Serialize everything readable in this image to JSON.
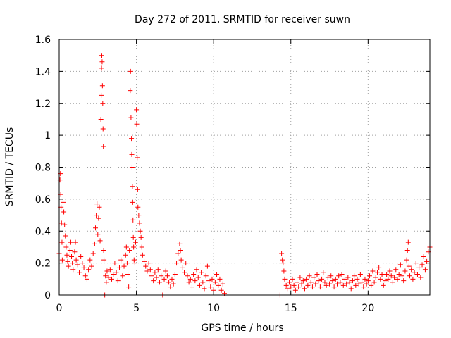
{
  "chart_data": {
    "type": "scatter",
    "title": "Day 272 of 2011, SRMTID for receiver suwn",
    "xlabel": "GPS time / hours",
    "ylabel": "SRMTID / TECUs",
    "xlim": [
      0,
      24
    ],
    "ylim": [
      0,
      1.6
    ],
    "xticks": [
      0,
      5,
      10,
      15,
      20
    ],
    "xtick_labels": [
      "0",
      "5",
      "10",
      "15",
      "20"
    ],
    "yticks": [
      0,
      0.2,
      0.4,
      0.6,
      0.8,
      1,
      1.2,
      1.4,
      1.6
    ],
    "ytick_labels": [
      "0",
      "0.2",
      "0.4",
      "0.6",
      "0.8",
      "1",
      "1.2",
      "1.4",
      "1.6"
    ],
    "grid": true,
    "marker": "+",
    "color": "#ff0000",
    "series": [
      {
        "points": [
          [
            0.0,
            0.26
          ],
          [
            0.05,
            0.72
          ],
          [
            0.08,
            0.76
          ],
          [
            0.1,
            0.63
          ],
          [
            0.12,
            0.55
          ],
          [
            0.15,
            0.45
          ],
          [
            0.18,
            0.33
          ],
          [
            0.2,
            0.22
          ],
          [
            0.25,
            0.58
          ],
          [
            0.3,
            0.52
          ],
          [
            0.35,
            0.44
          ],
          [
            0.4,
            0.37
          ],
          [
            0.45,
            0.3
          ],
          [
            0.5,
            0.25
          ],
          [
            0.55,
            0.21
          ],
          [
            0.6,
            0.18
          ],
          [
            0.7,
            0.28
          ],
          [
            0.75,
            0.33
          ],
          [
            0.8,
            0.24
          ],
          [
            0.85,
            0.2
          ],
          [
            0.9,
            0.16
          ],
          [
            1.0,
            0.27
          ],
          [
            1.05,
            0.33
          ],
          [
            1.1,
            0.22
          ],
          [
            1.2,
            0.19
          ],
          [
            1.3,
            0.14
          ],
          [
            1.4,
            0.24
          ],
          [
            1.5,
            0.2
          ],
          [
            1.6,
            0.17
          ],
          [
            1.7,
            0.12
          ],
          [
            1.8,
            0.1
          ],
          [
            1.9,
            0.16
          ],
          [
            2.0,
            0.22
          ],
          [
            2.1,
            0.18
          ],
          [
            2.2,
            0.26
          ],
          [
            2.3,
            0.32
          ],
          [
            2.35,
            0.42
          ],
          [
            2.4,
            0.5
          ],
          [
            2.45,
            0.57
          ],
          [
            2.5,
            0.38
          ],
          [
            2.55,
            0.48
          ],
          [
            2.6,
            0.55
          ],
          [
            2.65,
            0.34
          ],
          [
            2.7,
            1.1
          ],
          [
            2.72,
            1.25
          ],
          [
            2.74,
            1.42
          ],
          [
            2.76,
            1.5
          ],
          [
            2.78,
            1.46
          ],
          [
            2.8,
            1.31
          ],
          [
            2.82,
            1.2
          ],
          [
            2.84,
            1.04
          ],
          [
            2.86,
            0.93
          ],
          [
            2.88,
            0.28
          ],
          [
            2.9,
            0.22
          ],
          [
            2.95,
            0.0
          ],
          [
            3.0,
            0.12
          ],
          [
            3.05,
            0.08
          ],
          [
            3.1,
            0.15
          ],
          [
            3.2,
            0.11
          ],
          [
            3.3,
            0.16
          ],
          [
            3.4,
            0.1
          ],
          [
            3.5,
            0.13
          ],
          [
            3.6,
            0.2
          ],
          [
            3.7,
            0.14
          ],
          [
            3.8,
            0.09
          ],
          [
            3.9,
            0.17
          ],
          [
            4.0,
            0.22
          ],
          [
            4.1,
            0.12
          ],
          [
            4.2,
            0.18
          ],
          [
            4.3,
            0.25
          ],
          [
            4.35,
            0.3
          ],
          [
            4.4,
            0.2
          ],
          [
            4.45,
            0.13
          ],
          [
            4.5,
            0.05
          ],
          [
            4.55,
            0.28
          ],
          [
            4.6,
            1.28
          ],
          [
            4.62,
            1.4
          ],
          [
            4.65,
            1.11
          ],
          [
            4.68,
            0.98
          ],
          [
            4.7,
            0.88
          ],
          [
            4.72,
            0.8
          ],
          [
            4.74,
            0.68
          ],
          [
            4.76,
            0.58
          ],
          [
            4.78,
            0.47
          ],
          [
            4.8,
            0.36
          ],
          [
            4.82,
            0.3
          ],
          [
            4.85,
            0.22
          ],
          [
            4.9,
            0.2
          ],
          [
            4.95,
            0.33
          ],
          [
            5.0,
            1.16
          ],
          [
            5.02,
            1.07
          ],
          [
            5.05,
            0.86
          ],
          [
            5.08,
            0.66
          ],
          [
            5.1,
            0.55
          ],
          [
            5.15,
            0.5
          ],
          [
            5.2,
            0.45
          ],
          [
            5.25,
            0.4
          ],
          [
            5.3,
            0.36
          ],
          [
            5.35,
            0.3
          ],
          [
            5.4,
            0.25
          ],
          [
            5.5,
            0.21
          ],
          [
            5.6,
            0.18
          ],
          [
            5.7,
            0.15
          ],
          [
            5.8,
            0.2
          ],
          [
            5.9,
            0.16
          ],
          [
            6.0,
            0.12
          ],
          [
            6.1,
            0.09
          ],
          [
            6.2,
            0.14
          ],
          [
            6.3,
            0.11
          ],
          [
            6.4,
            0.16
          ],
          [
            6.5,
            0.08
          ],
          [
            6.6,
            0.12
          ],
          [
            6.7,
            0.0
          ],
          [
            6.8,
            0.1
          ],
          [
            6.9,
            0.15
          ],
          [
            7.0,
            0.12
          ],
          [
            7.1,
            0.08
          ],
          [
            7.2,
            0.05
          ],
          [
            7.3,
            0.1
          ],
          [
            7.4,
            0.07
          ],
          [
            7.5,
            0.13
          ],
          [
            7.6,
            0.2
          ],
          [
            7.7,
            0.26
          ],
          [
            7.8,
            0.32
          ],
          [
            7.85,
            0.28
          ],
          [
            7.9,
            0.22
          ],
          [
            8.0,
            0.17
          ],
          [
            8.1,
            0.14
          ],
          [
            8.2,
            0.2
          ],
          [
            8.3,
            0.12
          ],
          [
            8.4,
            0.08
          ],
          [
            8.5,
            0.1
          ],
          [
            8.6,
            0.05
          ],
          [
            8.7,
            0.13
          ],
          [
            8.8,
            0.09
          ],
          [
            8.9,
            0.16
          ],
          [
            9.0,
            0.11
          ],
          [
            9.1,
            0.06
          ],
          [
            9.2,
            0.14
          ],
          [
            9.3,
            0.08
          ],
          [
            9.4,
            0.04
          ],
          [
            9.5,
            0.12
          ],
          [
            9.6,
            0.18
          ],
          [
            9.7,
            0.09
          ],
          [
            9.8,
            0.05
          ],
          [
            9.9,
            0.1
          ],
          [
            10.0,
            0.03
          ],
          [
            10.1,
            0.08
          ],
          [
            10.2,
            0.13
          ],
          [
            10.3,
            0.06
          ],
          [
            10.4,
            0.1
          ],
          [
            10.5,
            0.03
          ],
          [
            10.6,
            0.07
          ],
          [
            10.7,
            0.01
          ],
          [
            14.3,
            0.0
          ],
          [
            14.4,
            0.26
          ],
          [
            14.45,
            0.22
          ],
          [
            14.5,
            0.2
          ],
          [
            14.55,
            0.15
          ],
          [
            14.6,
            0.1
          ],
          [
            14.7,
            0.06
          ],
          [
            14.8,
            0.04
          ],
          [
            14.9,
            0.08
          ],
          [
            15.0,
            0.05
          ],
          [
            15.1,
            0.1
          ],
          [
            15.2,
            0.06
          ],
          [
            15.3,
            0.03
          ],
          [
            15.4,
            0.08
          ],
          [
            15.5,
            0.05
          ],
          [
            15.6,
            0.11
          ],
          [
            15.7,
            0.07
          ],
          [
            15.8,
            0.09
          ],
          [
            15.9,
            0.04
          ],
          [
            16.0,
            0.1
          ],
          [
            16.1,
            0.06
          ],
          [
            16.2,
            0.12
          ],
          [
            16.3,
            0.08
          ],
          [
            16.4,
            0.05
          ],
          [
            16.5,
            0.11
          ],
          [
            16.6,
            0.07
          ],
          [
            16.7,
            0.13
          ],
          [
            16.8,
            0.09
          ],
          [
            16.9,
            0.05
          ],
          [
            17.0,
            0.1
          ],
          [
            17.1,
            0.14
          ],
          [
            17.2,
            0.08
          ],
          [
            17.3,
            0.06
          ],
          [
            17.4,
            0.11
          ],
          [
            17.5,
            0.07
          ],
          [
            17.6,
            0.12
          ],
          [
            17.7,
            0.09
          ],
          [
            17.8,
            0.05
          ],
          [
            17.9,
            0.1
          ],
          [
            18.0,
            0.07
          ],
          [
            18.1,
            0.12
          ],
          [
            18.2,
            0.08
          ],
          [
            18.3,
            0.13
          ],
          [
            18.4,
            0.06
          ],
          [
            18.5,
            0.1
          ],
          [
            18.6,
            0.07
          ],
          [
            18.7,
            0.11
          ],
          [
            18.8,
            0.08
          ],
          [
            18.9,
            0.04
          ],
          [
            19.0,
            0.09
          ],
          [
            19.1,
            0.12
          ],
          [
            19.2,
            0.06
          ],
          [
            19.3,
            0.1
          ],
          [
            19.4,
            0.07
          ],
          [
            19.5,
            0.13
          ],
          [
            19.6,
            0.08
          ],
          [
            19.7,
            0.05
          ],
          [
            19.8,
            0.1
          ],
          [
            19.9,
            0.07
          ],
          [
            20.0,
            0.09
          ],
          [
            20.1,
            0.12
          ],
          [
            20.2,
            0.06
          ],
          [
            20.3,
            0.15
          ],
          [
            20.4,
            0.08
          ],
          [
            20.5,
            0.11
          ],
          [
            20.6,
            0.14
          ],
          [
            20.7,
            0.17
          ],
          [
            20.8,
            0.1
          ],
          [
            20.9,
            0.13
          ],
          [
            21.0,
            0.06
          ],
          [
            21.1,
            0.09
          ],
          [
            21.2,
            0.13
          ],
          [
            21.3,
            0.1
          ],
          [
            21.4,
            0.15
          ],
          [
            21.5,
            0.12
          ],
          [
            21.6,
            0.08
          ],
          [
            21.7,
            0.11
          ],
          [
            21.8,
            0.16
          ],
          [
            21.9,
            0.1
          ],
          [
            22.0,
            0.13
          ],
          [
            22.1,
            0.19
          ],
          [
            22.2,
            0.12
          ],
          [
            22.3,
            0.09
          ],
          [
            22.4,
            0.15
          ],
          [
            22.5,
            0.22
          ],
          [
            22.55,
            0.28
          ],
          [
            22.6,
            0.33
          ],
          [
            22.65,
            0.18
          ],
          [
            22.7,
            0.12
          ],
          [
            22.8,
            0.16
          ],
          [
            22.9,
            0.1
          ],
          [
            23.0,
            0.14
          ],
          [
            23.1,
            0.2
          ],
          [
            23.2,
            0.13
          ],
          [
            23.3,
            0.17
          ],
          [
            23.4,
            0.11
          ],
          [
            23.5,
            0.19
          ],
          [
            23.6,
            0.24
          ],
          [
            23.7,
            0.16
          ],
          [
            23.8,
            0.21
          ],
          [
            23.9,
            0.27
          ],
          [
            24.0,
            0.3
          ]
        ]
      }
    ]
  }
}
